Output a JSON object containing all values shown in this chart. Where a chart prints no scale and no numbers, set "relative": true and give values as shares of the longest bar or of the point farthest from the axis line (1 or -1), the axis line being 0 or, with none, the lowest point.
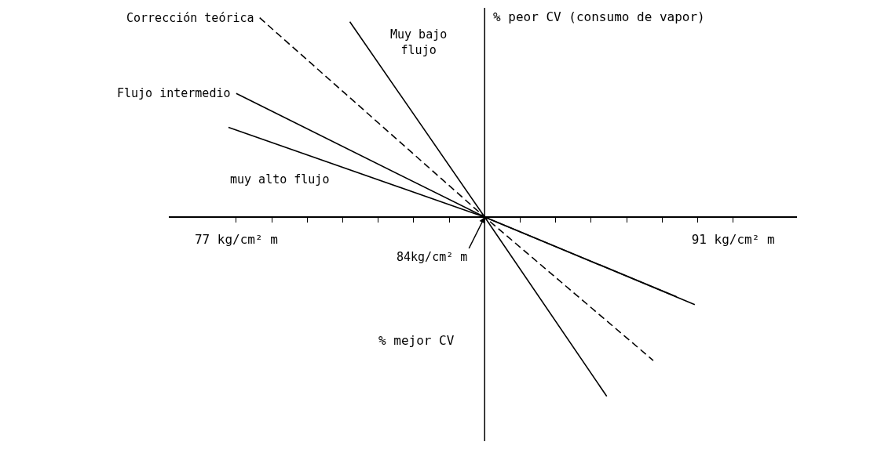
{
  "chart_data": {
    "type": "line",
    "relative": true,
    "xlim": [
      75.1,
      92.8
    ],
    "xticks": [
      {
        "value": 77,
        "label": "77 kg/cm² m"
      },
      {
        "value": 78,
        "label": null
      },
      {
        "value": 79,
        "label": null
      },
      {
        "value": 80,
        "label": null
      },
      {
        "value": 81,
        "label": null
      },
      {
        "value": 82,
        "label": null
      },
      {
        "value": 83,
        "label": null
      },
      {
        "value": 84,
        "label": null
      },
      {
        "value": 85,
        "label": null
      },
      {
        "value": 86,
        "label": null
      },
      {
        "value": 87,
        "label": null
      },
      {
        "value": 88,
        "label": null
      },
      {
        "value": 89,
        "label": null
      },
      {
        "value": 90,
        "label": null
      },
      {
        "value": 91,
        "label": "91 kg/cm² m"
      }
    ],
    "series": [
      {
        "name": "Corrección teórica",
        "color": "#000000",
        "line_style": "dashed",
        "x": [
          77.66,
          84,
          88.75
        ],
        "values": [
          1.0,
          0,
          -0.72
        ]
      },
      {
        "name": "Muy bajo flujo",
        "color": "#000000",
        "line_style": "solid",
        "x": [
          80.2,
          84,
          87.44
        ],
        "values": [
          0.98,
          0,
          -0.9
        ]
      },
      {
        "name": "Flujo intermedio",
        "color": "#000000",
        "line_style": "solid",
        "x": [
          77.0,
          84,
          89.41
        ],
        "values": [
          0.62,
          0,
          -0.4
        ]
      },
      {
        "name": "muy alto flujo",
        "color": "#000000",
        "line_style": "solid",
        "x": [
          76.78,
          84,
          89.92
        ],
        "values": [
          0.45,
          0,
          -0.44
        ]
      }
    ],
    "ref_lines": [
      {
        "axis": "x",
        "value": 84,
        "color": "#000000"
      }
    ],
    "annotations": [
      "% peor CV (consumo de vapor)",
      "% mejor CV",
      {
        "text": "84kg/cm² m",
        "x": 84,
        "y": 0
      }
    ],
    "marker": "none"
  }
}
